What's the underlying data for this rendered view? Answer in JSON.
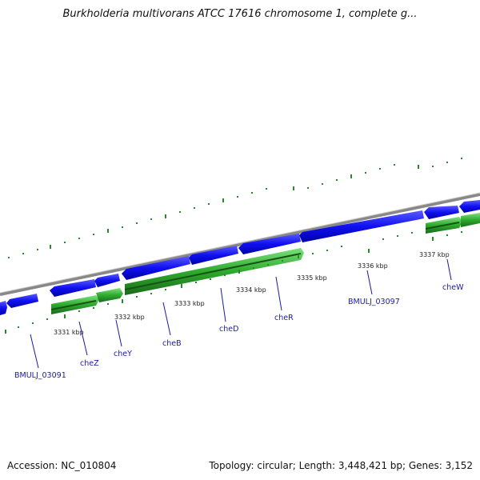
{
  "title": "Burkholderia multivorans ATCC 17616 chromosome 1, complete g...",
  "footer": {
    "accession": "Accession: NC_010804",
    "stats": "Topology: circular; Length: 3,448,421 bp; Genes: 3,152"
  },
  "colors": {
    "forward_gene": "#1010f0",
    "reverse_gene": "#2eaa2e",
    "ticks": "#2a8a2a",
    "backbone": "#888888",
    "label": "#1a1aa6"
  },
  "ticks": [
    {
      "label": "3331 kbp"
    },
    {
      "label": "3332 kbp"
    },
    {
      "label": "3333 kbp"
    },
    {
      "label": "3334 kbp"
    },
    {
      "label": "3335 kbp"
    },
    {
      "label": "3336 kbp"
    },
    {
      "label": "3337 kbp"
    }
  ],
  "genes": [
    {
      "label": "BMULJ_03091"
    },
    {
      "label": "cheZ"
    },
    {
      "label": "cheY"
    },
    {
      "label": "cheB"
    },
    {
      "label": "cheD"
    },
    {
      "label": "cheR"
    },
    {
      "label": "BMULJ_03097"
    },
    {
      "label": "cheW"
    }
  ]
}
